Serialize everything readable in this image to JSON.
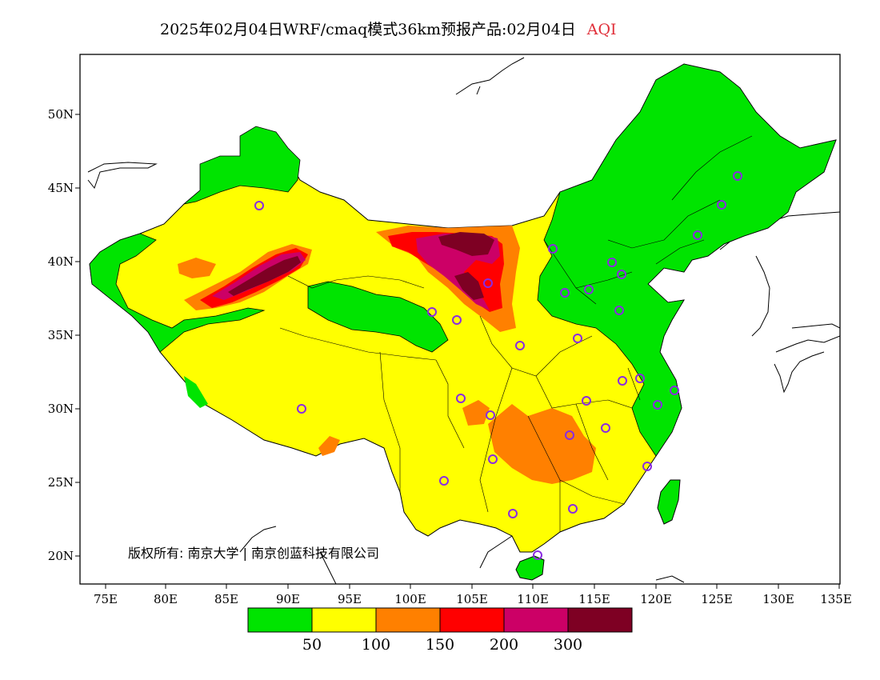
{
  "title": {
    "main": "2025年02月04日WRF/cmaq模式36km预报产品:02月04日",
    "variable": "AQI"
  },
  "map": {
    "lon_ticks": [
      "75E",
      "80E",
      "85E",
      "90E",
      "95E",
      "100E",
      "105E",
      "110E",
      "115E",
      "120E",
      "125E",
      "130E",
      "135E"
    ],
    "lat_ticks": [
      "20N",
      "25N",
      "30N",
      "35N",
      "40N",
      "45N",
      "50N"
    ],
    "copyright": "版权所有: 南京大学 | 南京创蓝科技有限公司"
  },
  "legend": {
    "colors": [
      "#00e400",
      "#ffff00",
      "#ff8000",
      "#ff0000",
      "#cc0066",
      "#7e0023"
    ],
    "labels": [
      "50",
      "100",
      "150",
      "200",
      "300"
    ]
  },
  "colors": {
    "good": "#00e400",
    "moderate": "#ffff00",
    "sensitive": "#ff8000",
    "unhealthy": "#ff0000",
    "very_unhealthy": "#cc0066",
    "hazardous": "#7e0023",
    "station_marker": "#8a2be2"
  }
}
